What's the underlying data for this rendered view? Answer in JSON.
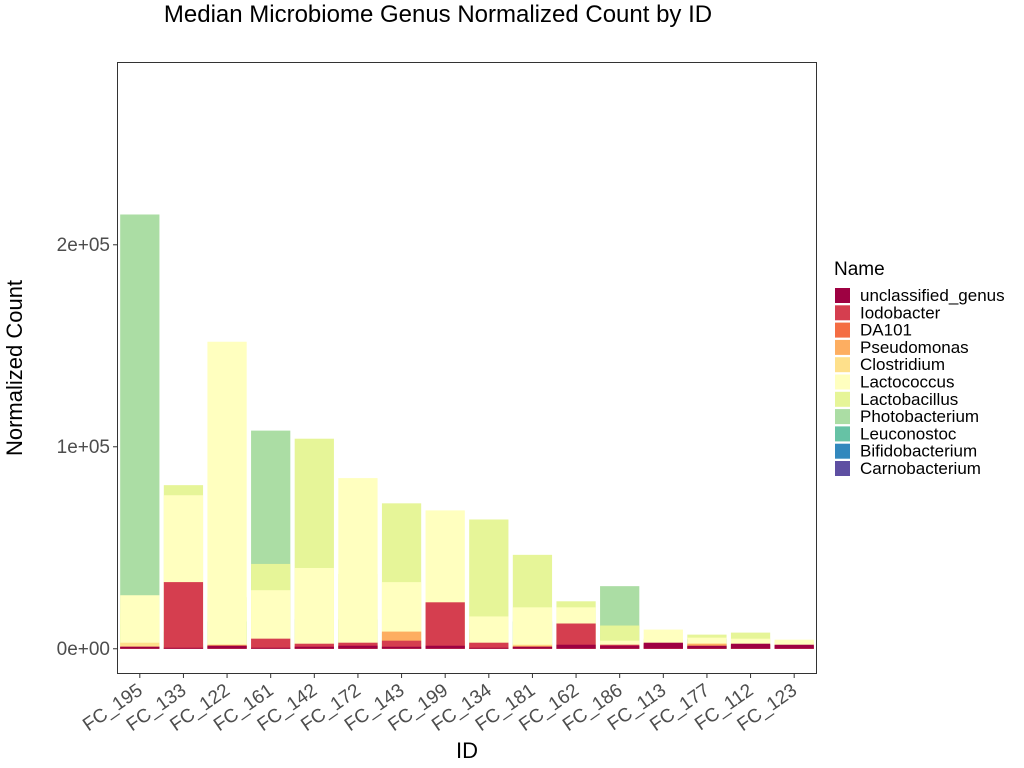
{
  "chart_data": {
    "type": "bar",
    "stacked": true,
    "title": "Median Microbiome Genus Normalized Count by ID",
    "xlabel": "ID",
    "ylabel": "Normalized Count",
    "ylim": [
      -12000,
      290000
    ],
    "yticks": [
      0,
      100000,
      200000
    ],
    "ytick_labels": [
      "0e+00",
      "1e+05",
      "2e+05"
    ],
    "grid": false,
    "legend_title": "Name",
    "legend_position": "right",
    "categories": [
      "FC_195",
      "FC_133",
      "FC_122",
      "FC_161",
      "FC_142",
      "FC_172",
      "FC_143",
      "FC_199",
      "FC_134",
      "FC_181",
      "FC_162",
      "FC_186",
      "FC_113",
      "FC_177",
      "FC_112",
      "FC_123"
    ],
    "series": [
      {
        "name": "Carnobacterium",
        "color": "#5e4fa2",
        "values": [
          500,
          1500,
          1000,
          500,
          2000,
          1000,
          1000,
          0,
          9500,
          0,
          0,
          0,
          0,
          0,
          500,
          0
        ]
      },
      {
        "name": "Bifidobacterium",
        "color": "#3288bd",
        "values": [
          0,
          0,
          0,
          0,
          0,
          0,
          0,
          0,
          0,
          0,
          0,
          0,
          0,
          5000,
          0,
          0
        ]
      },
      {
        "name": "Leuconostoc",
        "color": "#66c2a5",
        "values": [
          12000,
          8500,
          13500,
          3000,
          14500,
          3500,
          3000,
          0,
          3000,
          13500,
          0,
          0,
          2000,
          2000,
          500,
          500
        ]
      },
      {
        "name": "Photobacterium",
        "color": "#abdda4",
        "values": [
          215000,
          2500,
          0,
          108000,
          6000,
          14500,
          8000,
          0,
          1500,
          3000,
          4500,
          31000,
          0,
          0,
          0,
          0
        ]
      },
      {
        "name": "Lactobacillus",
        "color": "#e6f598",
        "values": [
          17500,
          81000,
          25500,
          42000,
          104000,
          37000,
          72000,
          23000,
          64000,
          46500,
          23500,
          11500,
          5000,
          7000,
          8000,
          3500
        ]
      },
      {
        "name": "Lactococcus",
        "color": "#ffffbf",
        "values": [
          26500,
          76000,
          152000,
          29000,
          40000,
          84500,
          33000,
          68500,
          16000,
          20500,
          20500,
          4000,
          9500,
          5500,
          5000,
          4500
        ]
      },
      {
        "name": "Clostridium",
        "color": "#fee08b",
        "values": [
          3000,
          1000,
          1500,
          1500,
          1500,
          2000,
          0,
          0,
          1500,
          2000,
          500,
          1000,
          1500,
          2500,
          0,
          500
        ]
      },
      {
        "name": "Pseudomonas",
        "color": "#fdae61",
        "values": [
          1000,
          500,
          2000,
          0,
          1500,
          2000,
          8500,
          4000,
          2500,
          1500,
          500,
          500,
          1000,
          2500,
          500,
          500
        ]
      },
      {
        "name": "DA101",
        "color": "#f46d43",
        "values": [
          0,
          0,
          0,
          0,
          0,
          0,
          0,
          0,
          0,
          0,
          0,
          0,
          0,
          0,
          0,
          0
        ]
      },
      {
        "name": "Iodobacter",
        "color": "#d53e4f",
        "values": [
          1000,
          33000,
          1500,
          5000,
          2500,
          3000,
          4000,
          23000,
          3000,
          1000,
          12500,
          2000,
          2500,
          1000,
          2000,
          1500
        ]
      },
      {
        "name": "unclassified_genus",
        "color": "#9e0142",
        "values": [
          1000,
          500,
          1500,
          500,
          1000,
          1500,
          1000,
          1500,
          500,
          1000,
          2000,
          1500,
          3000,
          1500,
          2500,
          2000
        ]
      }
    ]
  }
}
